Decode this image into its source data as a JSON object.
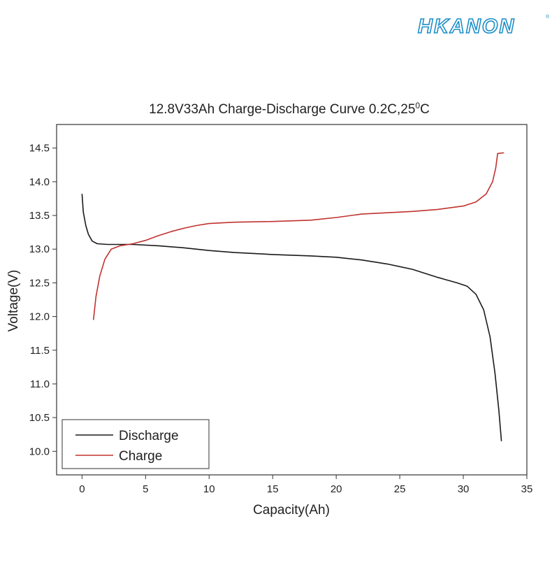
{
  "brand": {
    "name": "HKANON",
    "registered": "®",
    "color": "#1e8fc8"
  },
  "chart_data": {
    "type": "line",
    "title": "12.8V33Ah Charge-Discharge Curve  0.2C,25",
    "title_superscript": "0",
    "title_suffix": "C",
    "xlabel": "Capacity(Ah)",
    "ylabel": "Voltage(V)",
    "xlim": [
      -2,
      35
    ],
    "ylim": [
      9.65,
      14.85
    ],
    "xticks": [
      0,
      5,
      10,
      15,
      20,
      25,
      30,
      35
    ],
    "yticks": [
      10.0,
      10.5,
      11.0,
      11.5,
      12.0,
      12.5,
      13.0,
      13.5,
      14.0,
      14.5
    ],
    "ytick_labels": [
      "10.0",
      "10.5",
      "11.0",
      "11.5",
      "12.0",
      "12.5",
      "13.0",
      "13.5",
      "14.0",
      "14.5"
    ],
    "grid": false,
    "legend_position": "bottom-left",
    "series": [
      {
        "name": "Discharge",
        "color": "#1a1a1a",
        "points": [
          [
            0,
            13.82
          ],
          [
            0.1,
            13.55
          ],
          [
            0.3,
            13.35
          ],
          [
            0.5,
            13.22
          ],
          [
            0.8,
            13.12
          ],
          [
            1.2,
            13.08
          ],
          [
            2,
            13.07
          ],
          [
            4,
            13.07
          ],
          [
            6,
            13.05
          ],
          [
            8,
            13.02
          ],
          [
            10,
            12.98
          ],
          [
            12,
            12.95
          ],
          [
            15,
            12.92
          ],
          [
            18,
            12.9
          ],
          [
            20,
            12.88
          ],
          [
            22,
            12.84
          ],
          [
            24,
            12.78
          ],
          [
            26,
            12.7
          ],
          [
            28,
            12.58
          ],
          [
            29.5,
            12.5
          ],
          [
            30.3,
            12.45
          ],
          [
            31,
            12.33
          ],
          [
            31.6,
            12.1
          ],
          [
            32.1,
            11.7
          ],
          [
            32.5,
            11.15
          ],
          [
            32.8,
            10.6
          ],
          [
            33,
            10.15
          ]
        ]
      },
      {
        "name": "Charge",
        "color": "#c0322f",
        "points": [
          [
            0.9,
            11.95
          ],
          [
            1.1,
            12.3
          ],
          [
            1.4,
            12.6
          ],
          [
            1.8,
            12.85
          ],
          [
            2.3,
            13.0
          ],
          [
            3,
            13.05
          ],
          [
            4,
            13.08
          ],
          [
            5,
            13.13
          ],
          [
            6,
            13.2
          ],
          [
            7,
            13.26
          ],
          [
            8,
            13.31
          ],
          [
            9,
            13.35
          ],
          [
            10,
            13.38
          ],
          [
            12,
            13.4
          ],
          [
            15,
            13.41
          ],
          [
            18,
            13.43
          ],
          [
            20,
            13.47
          ],
          [
            22,
            13.52
          ],
          [
            24,
            13.54
          ],
          [
            26,
            13.56
          ],
          [
            28,
            13.59
          ],
          [
            30,
            13.64
          ],
          [
            31,
            13.7
          ],
          [
            31.8,
            13.82
          ],
          [
            32.3,
            14.0
          ],
          [
            32.55,
            14.2
          ],
          [
            32.7,
            14.42
          ],
          [
            33.2,
            14.43
          ]
        ]
      }
    ]
  }
}
